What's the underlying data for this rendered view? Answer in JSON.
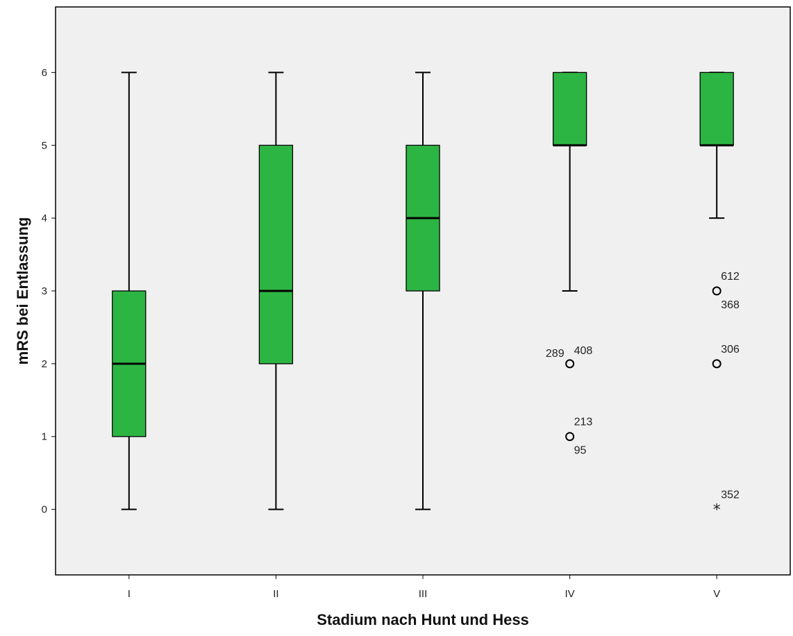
{
  "chart_data": {
    "type": "boxplot",
    "xlabel": "Stadium nach Hunt und Hess",
    "ylabel": "mRS bei Entlassung",
    "categories": [
      "I",
      "II",
      "III",
      "IV",
      "V"
    ],
    "ylim": [
      -0.9,
      6.9
    ],
    "yticks": [
      0,
      1,
      2,
      3,
      4,
      5,
      6
    ],
    "grid": false,
    "colors": {
      "box": "#2db543",
      "background": "#f0f0f0",
      "stroke": "#000000"
    },
    "boxes": [
      {
        "category": "I",
        "whisker_low": 0,
        "q1": 1,
        "median": 2,
        "q3": 3,
        "whisker_high": 6
      },
      {
        "category": "II",
        "whisker_low": 0,
        "q1": 2,
        "median": 3,
        "q3": 5,
        "whisker_high": 6
      },
      {
        "category": "III",
        "whisker_low": 0,
        "q1": 3,
        "median": 4,
        "q3": 5,
        "whisker_high": 6
      },
      {
        "category": "IV",
        "whisker_low": 3,
        "q1": 5,
        "median": 5,
        "q3": 6,
        "whisker_high": 6
      },
      {
        "category": "V",
        "whisker_low": 4,
        "q1": 5,
        "median": 5,
        "q3": 6,
        "whisker_high": 6
      }
    ],
    "outliers": [
      {
        "category": "IV",
        "value": 2,
        "marker": "circle",
        "labels": [
          "289",
          "408"
        ]
      },
      {
        "category": "IV",
        "value": 1,
        "marker": "circle",
        "labels": [
          "213",
          "95"
        ]
      },
      {
        "category": "V",
        "value": 3,
        "marker": "circle",
        "labels": [
          "612",
          "368"
        ]
      },
      {
        "category": "V",
        "value": 2,
        "marker": "circle",
        "labels": [
          "306"
        ]
      },
      {
        "category": "V",
        "value": 0,
        "marker": "star",
        "labels": [
          "352"
        ]
      }
    ]
  }
}
